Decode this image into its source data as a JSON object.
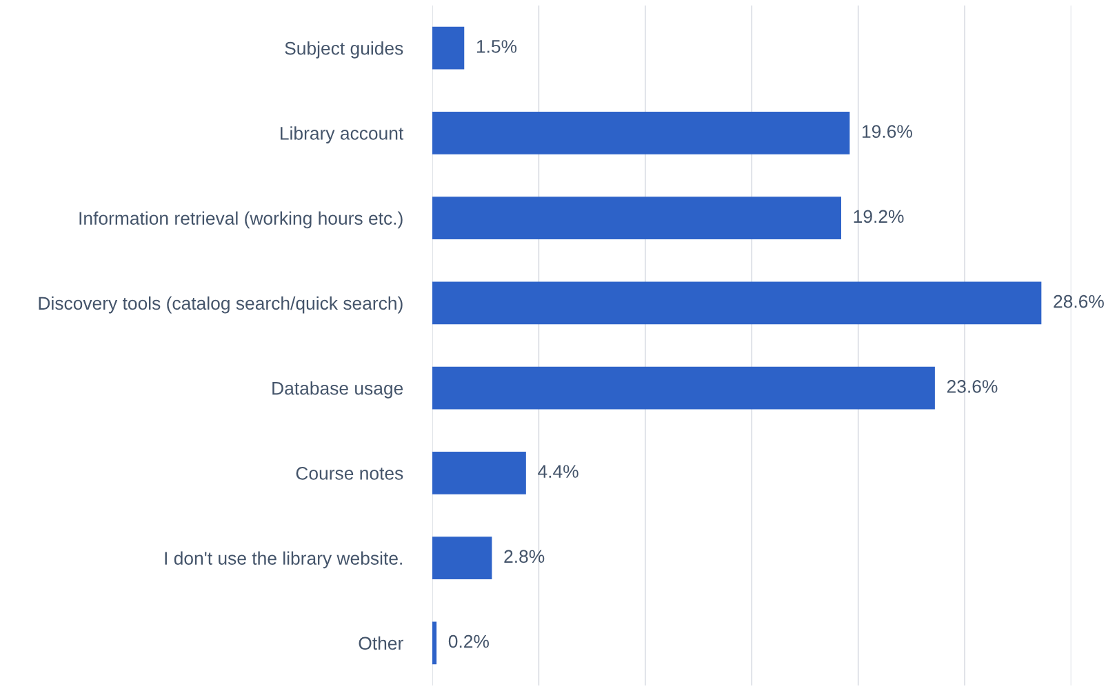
{
  "chart_data": {
    "type": "bar",
    "orientation": "horizontal",
    "categories": [
      "Subject guides",
      "Library account",
      "Information retrieval (working hours etc.)",
      "Discovery tools (catalog search/quick search)",
      "Database usage",
      "Course notes",
      "I don't use the library website.",
      "Other"
    ],
    "values": [
      1.5,
      19.6,
      19.2,
      28.6,
      23.6,
      4.4,
      2.8,
      0.2
    ],
    "value_labels": [
      "1.5%",
      "19.6%",
      "19.2%",
      "28.6%",
      "23.6%",
      "4.4%",
      "2.8%",
      "0.2%"
    ],
    "color": "#2d62c8",
    "xlim": [
      0,
      30
    ],
    "xticks": [
      {
        "value": 0,
        "label": null
      },
      {
        "value": 5,
        "label": null
      },
      {
        "value": 10,
        "label": null
      },
      {
        "value": 15,
        "label": null
      },
      {
        "value": 20,
        "label": null
      },
      {
        "value": 25,
        "label": null
      },
      {
        "value": 30,
        "label": null
      }
    ],
    "tick_labels": "y",
    "grid": "x",
    "legend": false
  }
}
